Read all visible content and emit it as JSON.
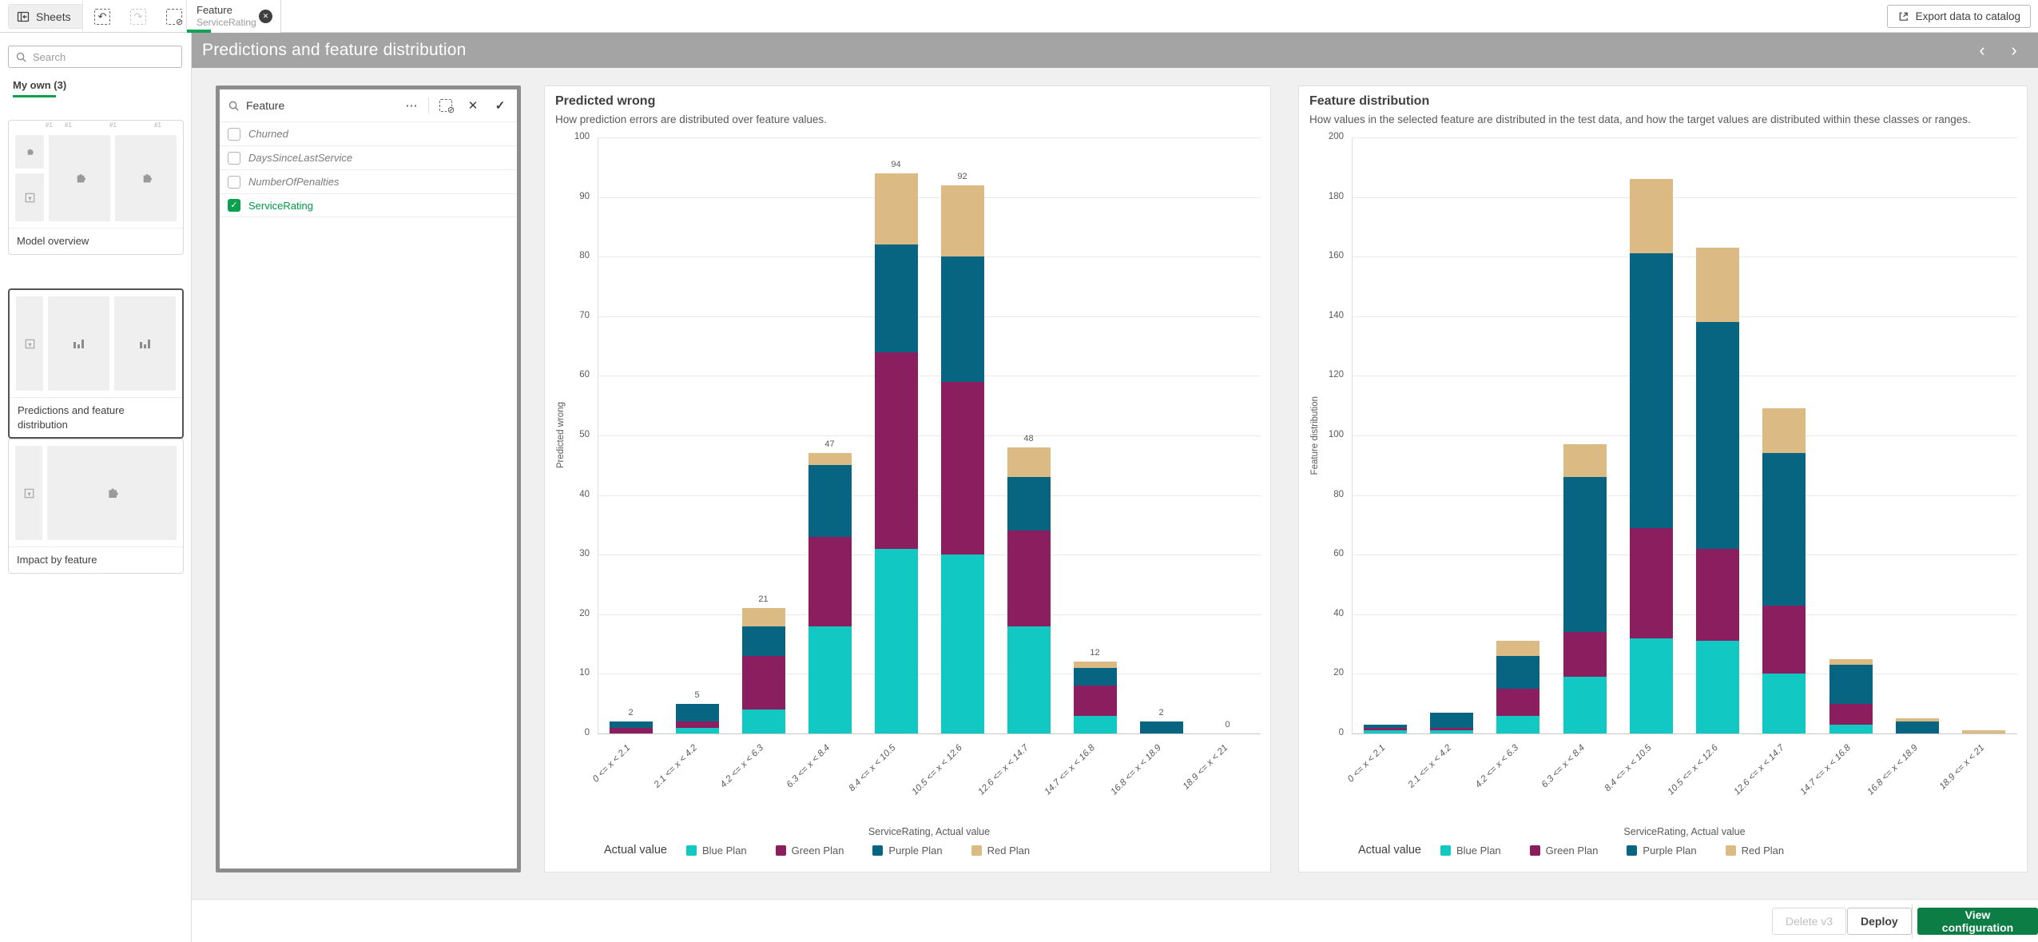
{
  "topbar": {
    "sheets_label": "Sheets",
    "tab": {
      "title": "Feature",
      "subtitle": "ServiceRating"
    },
    "export_label": "Export data to catalog"
  },
  "titlebar": {
    "title": "Predictions and feature distribution"
  },
  "sidebar": {
    "search_placeholder": "Search",
    "section_label": "My own (3)",
    "cards": [
      {
        "label": "Model overview",
        "selected": false,
        "panel_tag": "#1"
      },
      {
        "label": "Predictions and feature distribution",
        "selected": true
      },
      {
        "label": "Impact by feature",
        "selected": false
      }
    ]
  },
  "filter_panel": {
    "title": "Feature",
    "items": [
      {
        "label": "Churned",
        "checked": false
      },
      {
        "label": "DaysSinceLastService",
        "checked": false
      },
      {
        "label": "NumberOfPenalties",
        "checked": false
      },
      {
        "label": "ServiceRating",
        "checked": true
      }
    ]
  },
  "footer": {
    "delete_label": "Delete v3",
    "deploy_label": "Deploy",
    "view_configuration_label": "View configuration"
  },
  "colors": {
    "accent_green": "#0aa04e",
    "selected_text_green": "#009845",
    "button_green": "#0c7d45",
    "titlebar_gray": "#a4a4a4",
    "blue_plan": "#12c8c2",
    "green_plan": "#8a1e5f",
    "purple_plan": "#076581",
    "red_plan": "#dbba84"
  },
  "chart_data": [
    {
      "type": "bar",
      "stacked": true,
      "title": "Predicted wrong",
      "subtitle": "How prediction errors are distributed over feature values.",
      "ylabel": "Predicted wrong",
      "xlabel": "ServiceRating, Actual value",
      "legend_title": "Actual value",
      "legend_position": "bottom",
      "grid": true,
      "ylim": [
        0,
        100
      ],
      "ytick_step": 10,
      "show_totals": true,
      "categories": [
        "0 <= x < 2.1",
        "2.1 <= x < 4.2",
        "4.2 <= x < 6.3",
        "6.3 <= x < 8.4",
        "8.4 <= x < 10.5",
        "10.5 <= x < 12.6",
        "12.6 <= x < 14.7",
        "14.7 <= x < 16.8",
        "16.8 <= x < 18.9",
        "18.9 <= x < 21"
      ],
      "series": [
        {
          "name": "Blue Plan",
          "color": "#12c8c2",
          "values": [
            0,
            1,
            4,
            18,
            31,
            30,
            18,
            3,
            0,
            0
          ]
        },
        {
          "name": "Green Plan",
          "color": "#8a1e5f",
          "values": [
            1,
            1,
            9,
            15,
            33,
            29,
            16,
            5,
            0,
            0
          ]
        },
        {
          "name": "Purple Plan",
          "color": "#076581",
          "values": [
            1,
            3,
            5,
            12,
            18,
            21,
            9,
            3,
            2,
            0
          ]
        },
        {
          "name": "Red Plan",
          "color": "#dbba84",
          "values": [
            0,
            0,
            3,
            2,
            12,
            12,
            5,
            1,
            0,
            0
          ]
        }
      ],
      "totals": [
        2,
        5,
        21,
        47,
        94,
        92,
        48,
        12,
        2,
        0
      ]
    },
    {
      "type": "bar",
      "stacked": true,
      "title": "Feature distribution",
      "subtitle": "How values in the selected feature are distributed in the test data, and how the target values are distributed within these classes or ranges.",
      "ylabel": "Feature distribution",
      "xlabel": "ServiceRating, Actual value",
      "legend_title": "Actual value",
      "legend_position": "bottom",
      "grid": true,
      "ylim": [
        0,
        200
      ],
      "ytick_step": 20,
      "show_totals": false,
      "categories": [
        "0 <= x < 2.1",
        "2.1 <= x < 4.2",
        "4.2 <= x < 6.3",
        "6.3 <= x < 8.4",
        "8.4 <= x < 10.5",
        "10.5 <= x < 12.6",
        "12.6 <= x < 14.7",
        "14.7 <= x < 16.8",
        "16.8 <= x < 18.9",
        "18.9 <= x < 21"
      ],
      "series": [
        {
          "name": "Blue Plan",
          "color": "#12c8c2",
          "values": [
            1,
            1,
            6,
            19,
            32,
            31,
            20,
            3,
            0,
            0
          ]
        },
        {
          "name": "Green Plan",
          "color": "#8a1e5f",
          "values": [
            1,
            1,
            9,
            15,
            37,
            31,
            23,
            7,
            0,
            0
          ]
        },
        {
          "name": "Purple Plan",
          "color": "#076581",
          "values": [
            1,
            5,
            11,
            52,
            92,
            76,
            51,
            13,
            4,
            0
          ]
        },
        {
          "name": "Red Plan",
          "color": "#dbba84",
          "values": [
            0,
            0,
            5,
            11,
            25,
            25,
            15,
            2,
            1,
            1
          ]
        }
      ],
      "totals": [
        3,
        7,
        31,
        97,
        186,
        163,
        109,
        25,
        5,
        1
      ]
    }
  ]
}
